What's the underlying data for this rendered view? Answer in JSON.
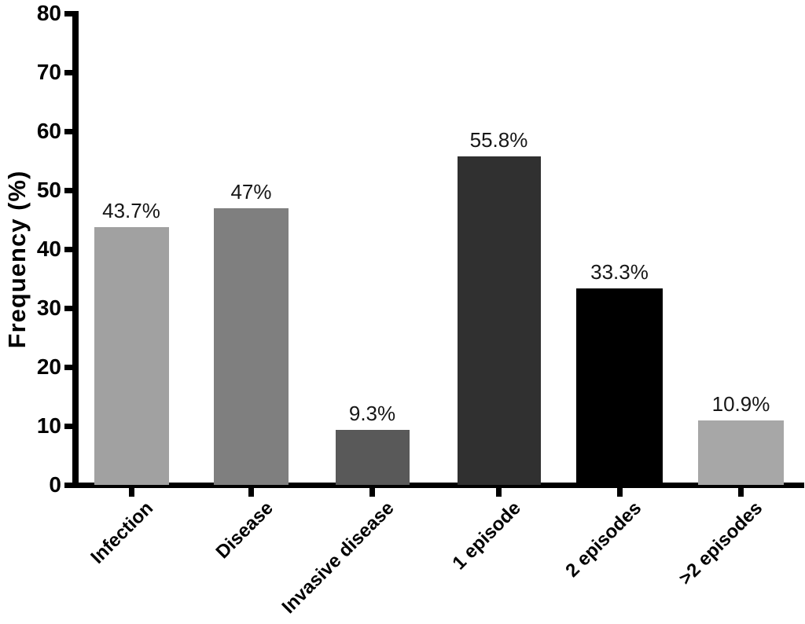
{
  "chart_data": {
    "type": "bar",
    "title": "",
    "xlabel": "",
    "ylabel": "Frequency (%)",
    "ylim": [
      0,
      80
    ],
    "yticks": [
      0,
      10,
      20,
      30,
      40,
      50,
      60,
      70,
      80
    ],
    "grid": false,
    "legend": null,
    "categories": [
      "Infection",
      "Disease",
      "Invasive disease",
      "1 episode",
      "2 episodes",
      ">2 episodes"
    ],
    "values": [
      43.7,
      47,
      9.3,
      55.8,
      33.3,
      10.9
    ],
    "value_labels": [
      "43.7%",
      "47%",
      "9.3%",
      "55.8%",
      "33.3%",
      "10.9%"
    ],
    "bar_colors": [
      "#a1a1a1",
      "#7f7f7f",
      "#595959",
      "#303030",
      "#000000",
      "#a7a7a7"
    ],
    "axis_color": "#000000",
    "text_color": "#161616",
    "background_color": "#ffffff"
  }
}
